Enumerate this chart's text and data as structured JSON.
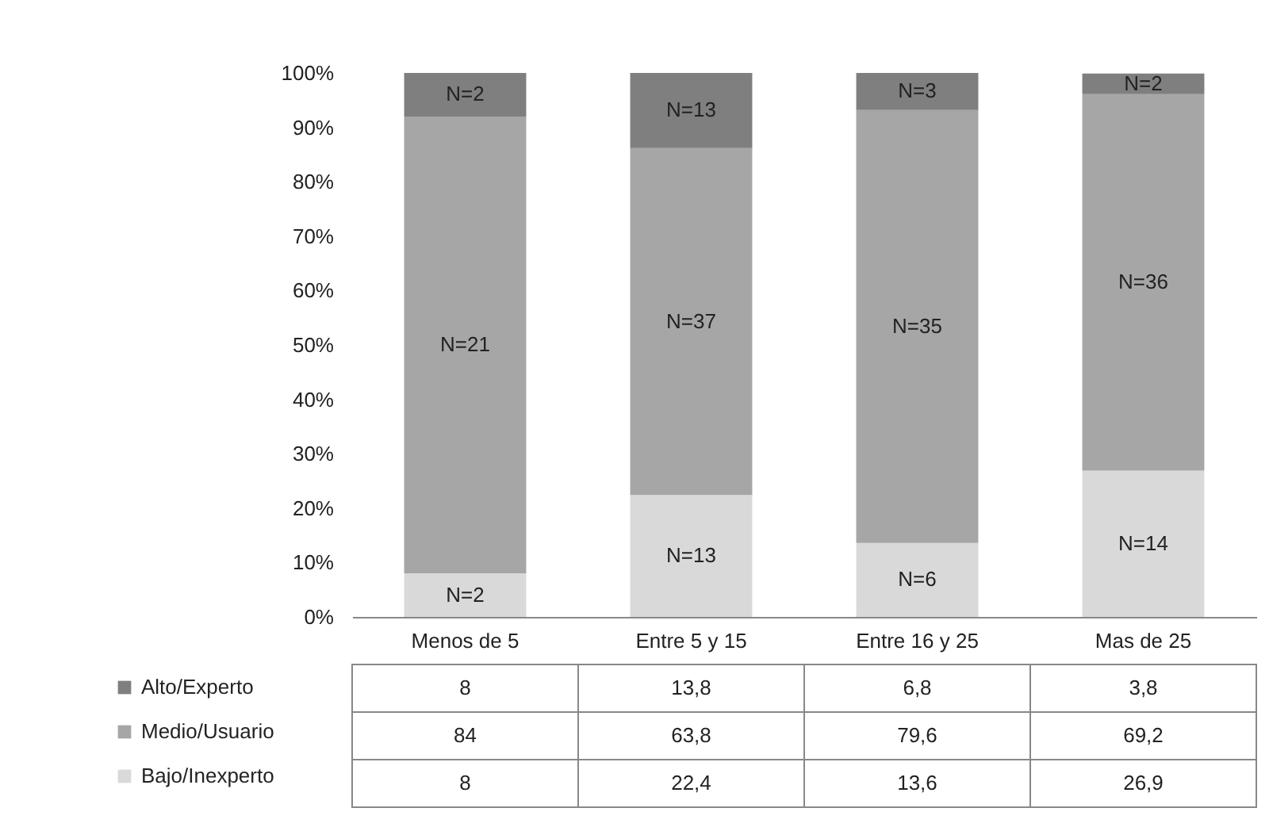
{
  "chart_data": {
    "type": "bar",
    "stacked": true,
    "categories": [
      "Menos de 5",
      "Entre 5 y 15",
      "Entre 16 y 25",
      "Mas de 25"
    ],
    "series": [
      {
        "name": "Bajo/Inexperto",
        "color": "#d9d9d9",
        "values": [
          8,
          22.4,
          13.6,
          26.9
        ],
        "value_labels": [
          "8",
          "22,4",
          "13,6",
          "26,9"
        ]
      },
      {
        "name": "Medio/Usuario",
        "color": "#a6a6a6",
        "values": [
          84,
          63.8,
          79.6,
          69.2
        ],
        "value_labels": [
          "84",
          "63,8",
          "79,6",
          "69,2"
        ]
      },
      {
        "name": "Alto/Experto",
        "color": "#7f7f7f",
        "values": [
          8,
          13.8,
          6.8,
          3.8
        ],
        "value_labels": [
          "8",
          "13,8",
          "6,8",
          "3,8"
        ]
      }
    ],
    "ylim": [
      0,
      100
    ],
    "yticks": [
      {
        "value": 0,
        "label": "0%"
      },
      {
        "value": 10,
        "label": "10%"
      },
      {
        "value": 20,
        "label": "20%"
      },
      {
        "value": 30,
        "label": "30%"
      },
      {
        "value": 40,
        "label": "40%"
      },
      {
        "value": 50,
        "label": "50%"
      },
      {
        "value": 60,
        "label": "60%"
      },
      {
        "value": 70,
        "label": "70%"
      },
      {
        "value": 80,
        "label": "80%"
      },
      {
        "value": 90,
        "label": "90%"
      },
      {
        "value": 100,
        "label": "100%"
      }
    ],
    "annotations": [
      "N=2",
      "N=21",
      "N=2",
      "N=13",
      "N=37",
      "N=13",
      "N=6",
      "N=35",
      "N=3",
      "N=14",
      "N=36",
      "N=2"
    ],
    "grid": false,
    "legend": "bottom left"
  }
}
